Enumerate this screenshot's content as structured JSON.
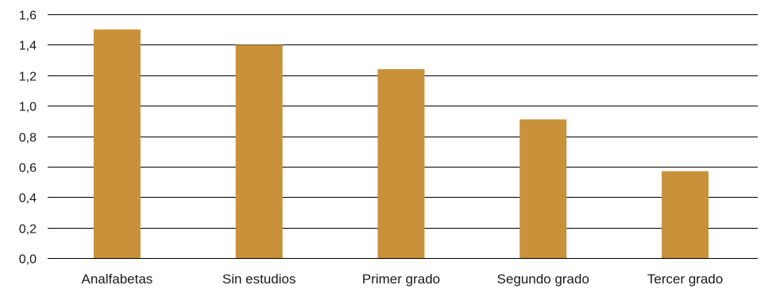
{
  "chart_data": {
    "type": "bar",
    "categories": [
      "Analfabetas",
      "Sin estudios",
      "Primer grado",
      "Segundo grado",
      "Tercer grado"
    ],
    "values": [
      1.5,
      1.4,
      1.24,
      0.91,
      0.57
    ],
    "yticks": [
      "0,0",
      "0,2",
      "0,4",
      "0,6",
      "0,8",
      "1,0",
      "1,2",
      "1,4",
      "1,6"
    ],
    "ylim": [
      0,
      1.6
    ],
    "grid": true,
    "legend": "none",
    "bar_color": "#C9913A"
  }
}
